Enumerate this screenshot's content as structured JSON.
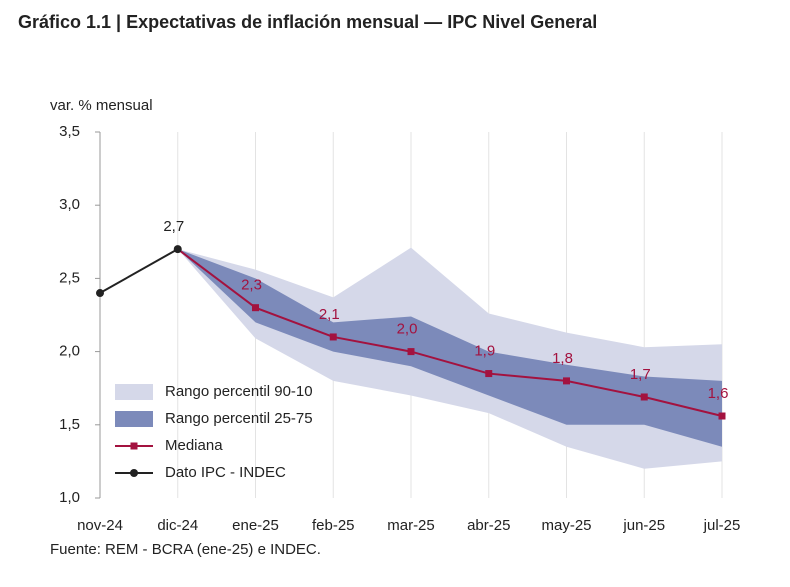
{
  "chart_data": {
    "type": "line",
    "title": "Gráfico 1.1 | Expectativas de inflación mensual — IPC Nivel General",
    "y_label": "var. % mensual",
    "source": "Fuente: REM - BCRA (ene-25) e INDEC.",
    "categories": [
      "nov-24",
      "dic-24",
      "ene-25",
      "feb-25",
      "mar-25",
      "abr-25",
      "may-25",
      "jun-25",
      "jul-25"
    ],
    "ylim": [
      1.0,
      3.5
    ],
    "yticks": [
      {
        "value": 1.0,
        "label": "1,0"
      },
      {
        "value": 1.5,
        "label": "1,5"
      },
      {
        "value": 2.0,
        "label": "2,0"
      },
      {
        "value": 2.5,
        "label": "2,5"
      },
      {
        "value": 3.0,
        "label": "3,0"
      },
      {
        "value": 3.5,
        "label": "3,5"
      }
    ],
    "grid": true,
    "bands": [
      {
        "name": "Rango percentil 90-10",
        "color": "#d5d8e9",
        "upper": [
          null,
          2.7,
          2.56,
          2.37,
          2.71,
          2.26,
          2.13,
          2.03,
          2.05
        ],
        "lower": [
          null,
          2.7,
          2.09,
          1.8,
          1.7,
          1.58,
          1.35,
          1.2,
          1.25
        ]
      },
      {
        "name": "Rango percentil 25-75",
        "color": "#7c8aba",
        "upper": [
          null,
          2.7,
          2.5,
          2.2,
          2.24,
          2.0,
          1.91,
          1.83,
          1.8
        ],
        "lower": [
          null,
          2.7,
          2.2,
          2.0,
          1.9,
          1.7,
          1.5,
          1.5,
          1.35
        ]
      }
    ],
    "series": [
      {
        "name": "Mediana",
        "color": "#a3123f",
        "marker": "square",
        "values": [
          null,
          2.7,
          2.3,
          2.1,
          2.0,
          1.85,
          1.8,
          1.69,
          1.56
        ],
        "value_labels": [
          null,
          null,
          "2,3",
          "2,1",
          "2,0",
          "1,9",
          "1,8",
          "1,7",
          "1,6"
        ]
      },
      {
        "name": "Dato IPC - INDEC",
        "color": "#222222",
        "marker": "circle",
        "values": [
          2.4,
          2.7,
          null,
          null,
          null,
          null,
          null,
          null,
          null
        ],
        "value_labels": [
          null,
          "2,7",
          null,
          null,
          null,
          null,
          null,
          null,
          null
        ]
      }
    ]
  }
}
